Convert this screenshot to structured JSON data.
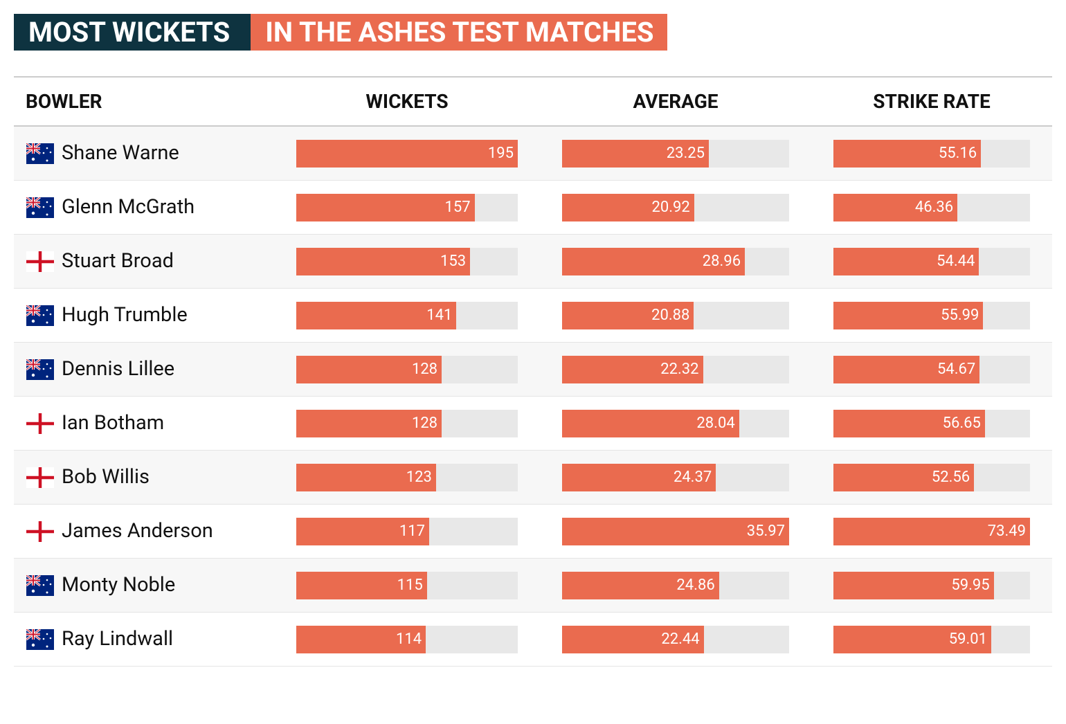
{
  "header": {
    "title_part1": "MOST WICKETS",
    "title_part2": "IN THE ASHES TEST MATCHES"
  },
  "table": {
    "columns": [
      "BOWLER",
      "WICKETS",
      "AVERAGE",
      "STRIKE RATE"
    ],
    "rows": [
      {
        "bowler": "Shane Warne",
        "wickets": 195,
        "average": 23.25,
        "strike_rate": 55.16
      },
      {
        "bowler": "Glenn McGrath",
        "wickets": 157,
        "average": 20.92,
        "strike_rate": 46.36
      },
      {
        "bowler": "Stuart Broad",
        "wickets": 153,
        "average": 28.96,
        "strike_rate": 54.44
      },
      {
        "bowler": "Hugh Trumble",
        "wickets": 141,
        "average": 20.88,
        "strike_rate": 55.99
      },
      {
        "bowler": "Dennis Lillee",
        "wickets": 128,
        "average": 22.32,
        "strike_rate": 54.67
      },
      {
        "bowler": "Ian Botham",
        "wickets": 128,
        "average": 28.04,
        "strike_rate": 56.65
      },
      {
        "bowler": "Bob Willis",
        "wickets": 123,
        "average": 24.37,
        "strike_rate": 52.56
      },
      {
        "bowler": "James Anderson",
        "wickets": 117,
        "average": 35.97,
        "strike_rate": 73.49
      },
      {
        "bowler": "Monty Noble",
        "wickets": 115,
        "average": 24.86,
        "strike_rate": 59.95
      },
      {
        "bowler": "Ray Lindwall",
        "wickets": 114,
        "average": 22.44,
        "strike_rate": 59.01
      }
    ]
  }
}
